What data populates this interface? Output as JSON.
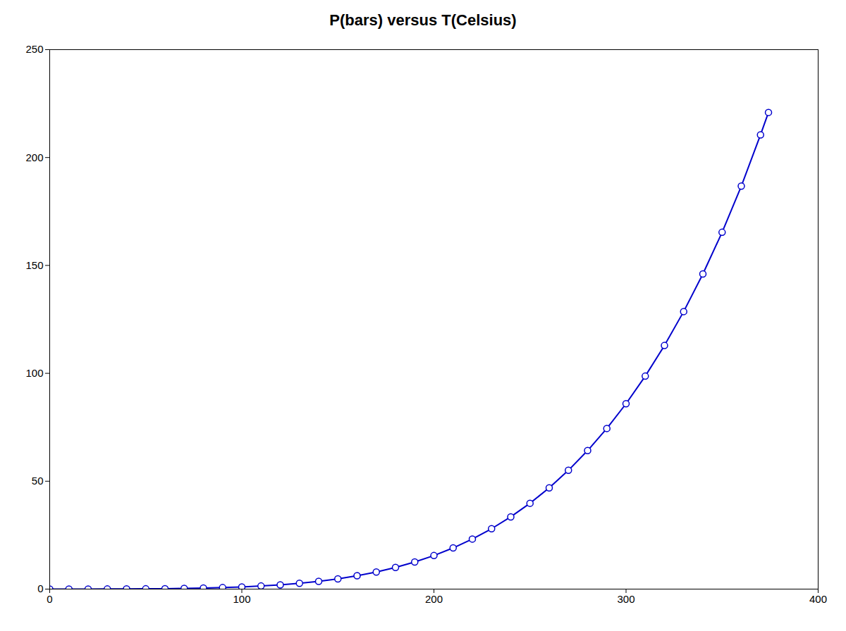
{
  "chart_data": {
    "type": "line",
    "title": "P(bars) versus T(Celsius)",
    "x": [
      0,
      10,
      20,
      30,
      40,
      50,
      60,
      70,
      80,
      90,
      100,
      110,
      120,
      130,
      140,
      150,
      160,
      170,
      180,
      190,
      200,
      210,
      220,
      230,
      240,
      250,
      260,
      270,
      280,
      290,
      300,
      310,
      320,
      330,
      340,
      350,
      360,
      370,
      374.14
    ],
    "values": [
      0.00611,
      0.01228,
      0.02338,
      0.04246,
      0.07384,
      0.12349,
      0.1994,
      0.3119,
      0.4739,
      0.7018,
      1.01325,
      1.4327,
      1.9854,
      2.7012,
      3.6136,
      4.7596,
      6.1804,
      7.9202,
      10.027,
      12.552,
      15.549,
      19.079,
      23.201,
      27.979,
      33.48,
      39.776,
      46.94,
      55.051,
      64.191,
      74.449,
      85.917,
      98.694,
      112.89,
      128.63,
      146.05,
      165.35,
      186.74,
      210.53,
      220.9
    ],
    "color": "#0000CC",
    "marker": "circle",
    "xlim": [
      0,
      400
    ],
    "ylim": [
      0,
      250
    ],
    "xticks": [
      0,
      100,
      200,
      300,
      400
    ],
    "yticks": [
      0,
      50,
      100,
      150,
      200,
      250
    ],
    "grid": false
  }
}
